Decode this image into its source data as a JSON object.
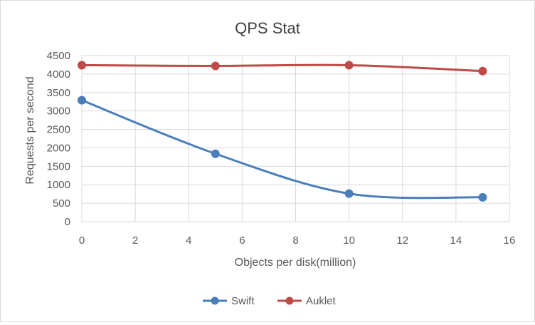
{
  "chart_data": {
    "type": "line",
    "title": "QPS Stat",
    "xlabel": "Objects per disk(million)",
    "ylabel": "Requests per second",
    "xlim": [
      0,
      16
    ],
    "ylim": [
      0,
      4500
    ],
    "xticks": [
      0,
      2,
      4,
      6,
      8,
      10,
      12,
      14,
      16
    ],
    "yticks": [
      0,
      500,
      1000,
      1500,
      2000,
      2500,
      3000,
      3500,
      4000,
      4500
    ],
    "grid": true,
    "smooth": true,
    "legend_position": "bottom",
    "series": [
      {
        "name": "Swift",
        "color": "#4a7ebb",
        "x": [
          0,
          5,
          10,
          15
        ],
        "y": [
          3290,
          1840,
          760,
          660
        ]
      },
      {
        "name": "Auklet",
        "color": "#be4b48",
        "x": [
          0,
          5,
          10,
          15
        ],
        "y": [
          4240,
          4220,
          4240,
          4080
        ]
      }
    ]
  }
}
